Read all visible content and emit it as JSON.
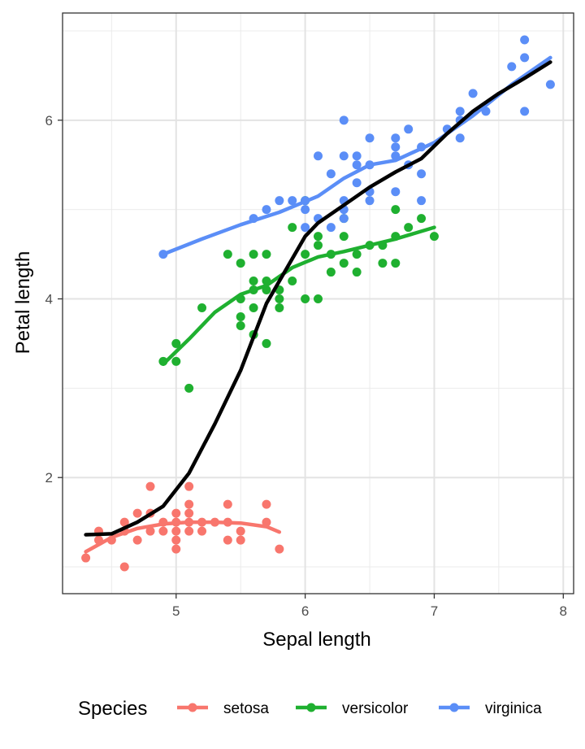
{
  "chart_data": {
    "type": "scatter",
    "xlabel": "Sepal length",
    "ylabel": "Petal length",
    "xlim": [
      4.12,
      8.08
    ],
    "ylim": [
      0.7,
      7.2
    ],
    "x_ticks": [
      5,
      6,
      7,
      8
    ],
    "y_ticks": [
      2,
      4,
      6
    ],
    "grid": true,
    "legend": {
      "title": "Species",
      "position": "bottom",
      "entries": [
        "setosa",
        "versicolor",
        "virginica"
      ]
    },
    "colors": {
      "setosa": "#F8766D",
      "versicolor": "#1FB030",
      "virginica": "#5B8EF7",
      "overall_smooth": "#000000"
    },
    "series": [
      {
        "name": "setosa",
        "points": [
          [
            4.3,
            1.1
          ],
          [
            4.4,
            1.4
          ],
          [
            4.4,
            1.3
          ],
          [
            4.5,
            1.3
          ],
          [
            4.6,
            1.4
          ],
          [
            4.6,
            1.5
          ],
          [
            4.6,
            1.0
          ],
          [
            4.7,
            1.3
          ],
          [
            4.7,
            1.6
          ],
          [
            4.8,
            1.4
          ],
          [
            4.8,
            1.6
          ],
          [
            4.8,
            1.9
          ],
          [
            4.9,
            1.4
          ],
          [
            4.9,
            1.5
          ],
          [
            5.0,
            1.4
          ],
          [
            5.0,
            1.5
          ],
          [
            5.0,
            1.6
          ],
          [
            5.0,
            1.2
          ],
          [
            5.0,
            1.3
          ],
          [
            5.1,
            1.4
          ],
          [
            5.1,
            1.5
          ],
          [
            5.1,
            1.7
          ],
          [
            5.1,
            1.9
          ],
          [
            5.1,
            1.6
          ],
          [
            5.2,
            1.5
          ],
          [
            5.2,
            1.4
          ],
          [
            5.3,
            1.5
          ],
          [
            5.4,
            1.7
          ],
          [
            5.4,
            1.5
          ],
          [
            5.4,
            1.3
          ],
          [
            5.5,
            1.4
          ],
          [
            5.5,
            1.3
          ],
          [
            5.7,
            1.5
          ],
          [
            5.7,
            1.7
          ],
          [
            5.8,
            1.2
          ]
        ],
        "smooth": [
          [
            4.3,
            1.17
          ],
          [
            4.5,
            1.33
          ],
          [
            4.7,
            1.43
          ],
          [
            4.9,
            1.48
          ],
          [
            5.1,
            1.5
          ],
          [
            5.3,
            1.5
          ],
          [
            5.5,
            1.49
          ],
          [
            5.7,
            1.45
          ],
          [
            5.8,
            1.39
          ]
        ]
      },
      {
        "name": "versicolor",
        "points": [
          [
            4.9,
            3.3
          ],
          [
            5.0,
            3.3
          ],
          [
            5.0,
            3.5
          ],
          [
            5.1,
            3.0
          ],
          [
            5.2,
            3.9
          ],
          [
            5.4,
            4.5
          ],
          [
            5.5,
            4.4
          ],
          [
            5.5,
            4.0
          ],
          [
            5.5,
            3.8
          ],
          [
            5.5,
            3.7
          ],
          [
            5.6,
            4.5
          ],
          [
            5.6,
            4.2
          ],
          [
            5.6,
            4.1
          ],
          [
            5.6,
            3.9
          ],
          [
            5.6,
            3.6
          ],
          [
            5.7,
            4.5
          ],
          [
            5.7,
            4.2
          ],
          [
            5.7,
            4.1
          ],
          [
            5.7,
            3.5
          ],
          [
            5.8,
            4.1
          ],
          [
            5.8,
            4.0
          ],
          [
            5.8,
            3.9
          ],
          [
            5.9,
            4.8
          ],
          [
            5.9,
            4.2
          ],
          [
            6.0,
            5.1
          ],
          [
            6.0,
            4.5
          ],
          [
            6.0,
            4.0
          ],
          [
            6.1,
            4.7
          ],
          [
            6.1,
            4.6
          ],
          [
            6.1,
            4.0
          ],
          [
            6.2,
            4.5
          ],
          [
            6.2,
            4.3
          ],
          [
            6.3,
            4.9
          ],
          [
            6.3,
            4.7
          ],
          [
            6.3,
            4.4
          ],
          [
            6.4,
            4.5
          ],
          [
            6.4,
            4.3
          ],
          [
            6.5,
            4.6
          ],
          [
            6.6,
            4.6
          ],
          [
            6.6,
            4.4
          ],
          [
            6.7,
            5.0
          ],
          [
            6.7,
            4.7
          ],
          [
            6.7,
            4.4
          ],
          [
            6.8,
            4.8
          ],
          [
            6.9,
            4.9
          ],
          [
            7.0,
            4.7
          ]
        ],
        "smooth": [
          [
            4.9,
            3.27
          ],
          [
            5.1,
            3.55
          ],
          [
            5.3,
            3.85
          ],
          [
            5.5,
            4.05
          ],
          [
            5.7,
            4.15
          ],
          [
            5.9,
            4.35
          ],
          [
            6.1,
            4.47
          ],
          [
            6.3,
            4.53
          ],
          [
            6.5,
            4.6
          ],
          [
            6.7,
            4.67
          ],
          [
            7.0,
            4.8
          ]
        ]
      },
      {
        "name": "virginica",
        "points": [
          [
            4.9,
            4.5
          ],
          [
            5.6,
            4.9
          ],
          [
            5.7,
            5.0
          ],
          [
            5.8,
            5.1
          ],
          [
            5.9,
            5.1
          ],
          [
            6.0,
            5.1
          ],
          [
            6.0,
            4.8
          ],
          [
            6.0,
            5.0
          ],
          [
            6.1,
            5.6
          ],
          [
            6.1,
            4.9
          ],
          [
            6.2,
            5.4
          ],
          [
            6.2,
            4.8
          ],
          [
            6.3,
            6.0
          ],
          [
            6.3,
            5.6
          ],
          [
            6.3,
            5.1
          ],
          [
            6.3,
            5.0
          ],
          [
            6.3,
            4.9
          ],
          [
            6.4,
            5.6
          ],
          [
            6.4,
            5.5
          ],
          [
            6.4,
            5.3
          ],
          [
            6.5,
            5.8
          ],
          [
            6.5,
            5.5
          ],
          [
            6.5,
            5.2
          ],
          [
            6.5,
            5.1
          ],
          [
            6.7,
            5.8
          ],
          [
            6.7,
            5.7
          ],
          [
            6.7,
            5.6
          ],
          [
            6.7,
            5.2
          ],
          [
            6.8,
            5.9
          ],
          [
            6.8,
            5.5
          ],
          [
            6.9,
            5.7
          ],
          [
            6.9,
            5.4
          ],
          [
            6.9,
            5.1
          ],
          [
            7.1,
            5.9
          ],
          [
            7.2,
            6.1
          ],
          [
            7.2,
            6.0
          ],
          [
            7.2,
            5.8
          ],
          [
            7.3,
            6.3
          ],
          [
            7.4,
            6.1
          ],
          [
            7.6,
            6.6
          ],
          [
            7.7,
            6.9
          ],
          [
            7.7,
            6.7
          ],
          [
            7.7,
            6.1
          ],
          [
            7.9,
            6.4
          ]
        ],
        "smooth": [
          [
            4.9,
            4.5
          ],
          [
            5.2,
            4.67
          ],
          [
            5.5,
            4.83
          ],
          [
            5.8,
            4.97
          ],
          [
            6.1,
            5.15
          ],
          [
            6.3,
            5.35
          ],
          [
            6.5,
            5.5
          ],
          [
            6.7,
            5.55
          ],
          [
            7.0,
            5.75
          ],
          [
            7.3,
            6.05
          ],
          [
            7.6,
            6.4
          ],
          [
            7.9,
            6.7
          ]
        ]
      }
    ],
    "overall_smooth": [
      [
        4.3,
        1.36
      ],
      [
        4.5,
        1.37
      ],
      [
        4.7,
        1.5
      ],
      [
        4.9,
        1.68
      ],
      [
        5.1,
        2.05
      ],
      [
        5.3,
        2.6
      ],
      [
        5.5,
        3.2
      ],
      [
        5.7,
        3.95
      ],
      [
        5.9,
        4.45
      ],
      [
        6.0,
        4.7
      ],
      [
        6.1,
        4.85
      ],
      [
        6.3,
        5.05
      ],
      [
        6.5,
        5.25
      ],
      [
        6.7,
        5.42
      ],
      [
        6.9,
        5.57
      ],
      [
        7.1,
        5.85
      ],
      [
        7.3,
        6.1
      ],
      [
        7.5,
        6.3
      ],
      [
        7.7,
        6.47
      ],
      [
        7.9,
        6.65
      ]
    ]
  }
}
